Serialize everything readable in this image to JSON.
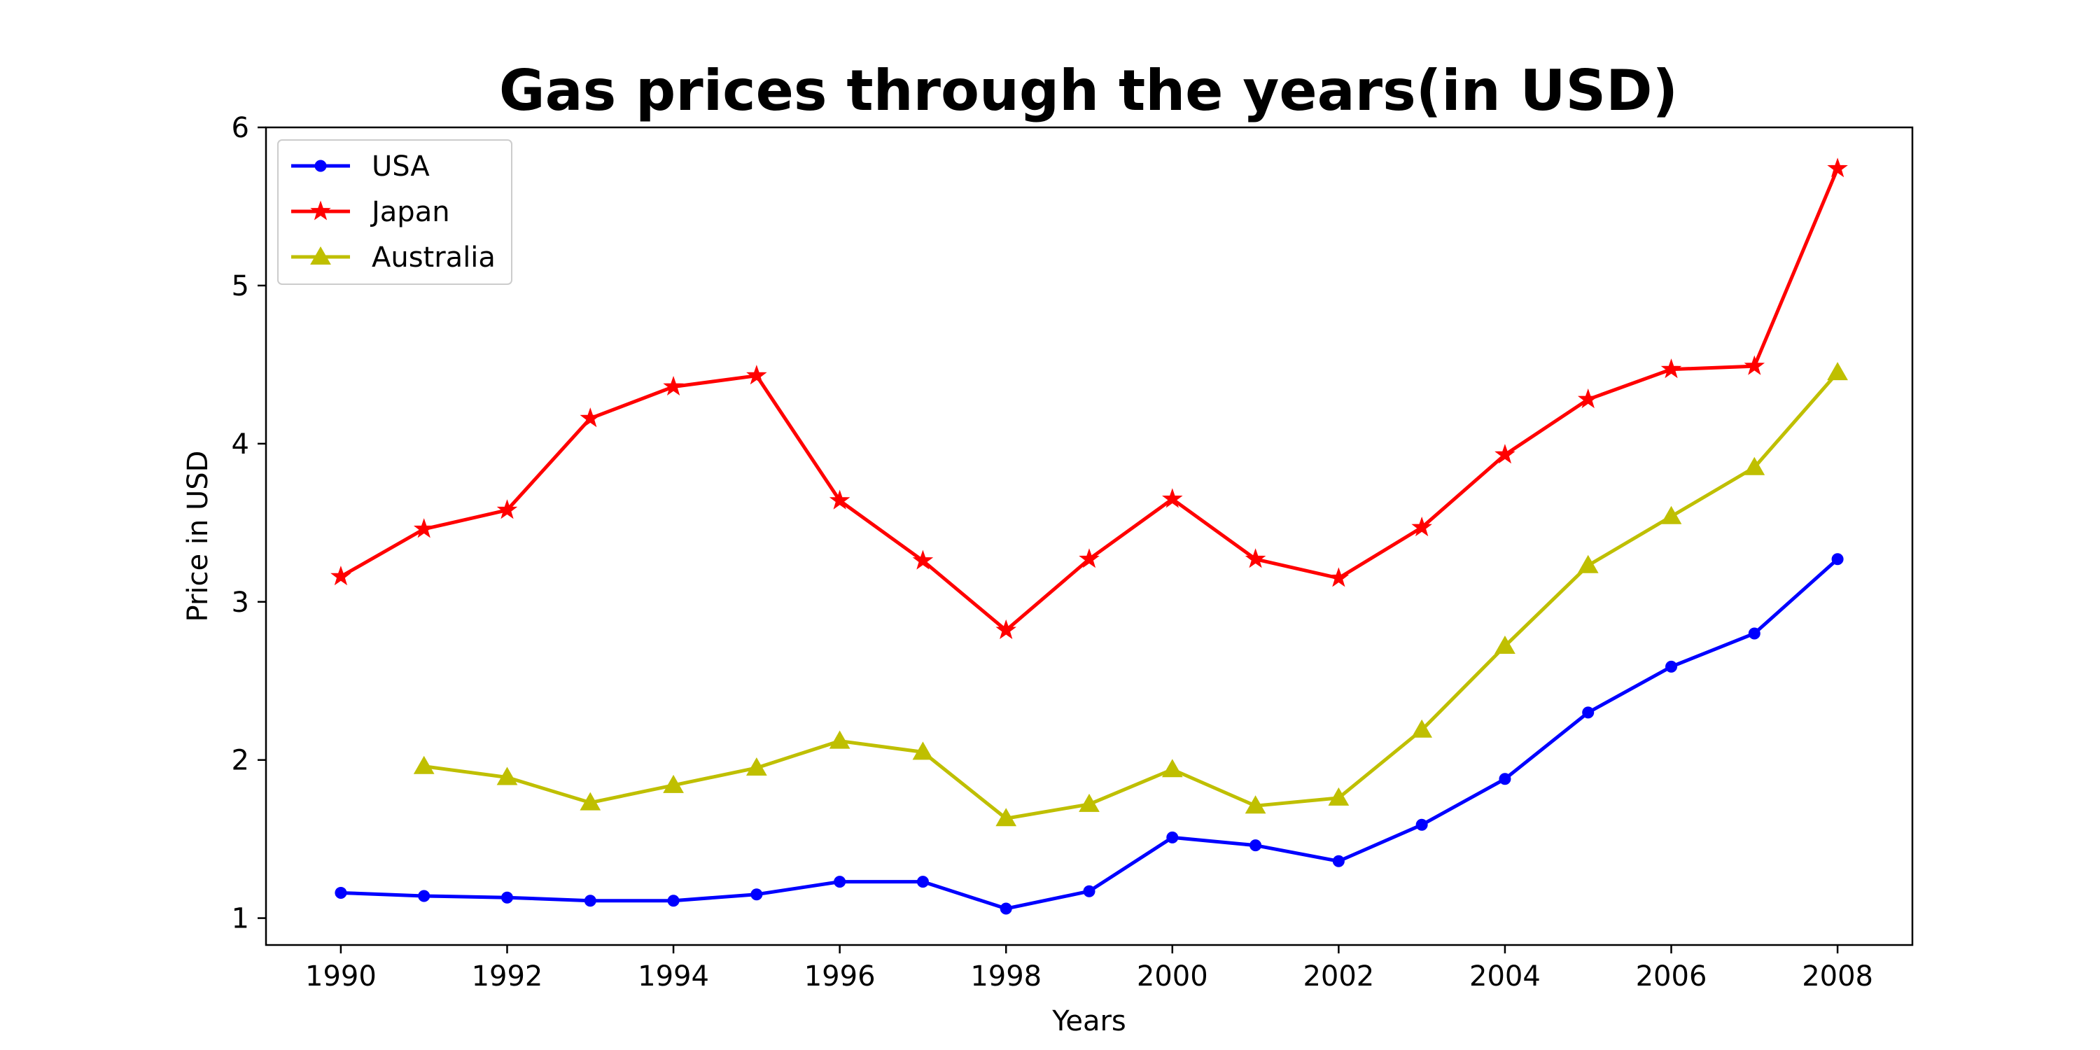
{
  "chart_data": {
    "type": "line",
    "title": "Gas prices through the years(in USD)",
    "xlabel": "Years",
    "ylabel": "Price in USD",
    "xlim": [
      1989.1,
      2008.9
    ],
    "ylim": [
      0.83,
      6.0
    ],
    "x_ticks": [
      1990,
      1992,
      1994,
      1996,
      1998,
      2000,
      2002,
      2004,
      2006,
      2008
    ],
    "y_ticks": [
      1,
      2,
      3,
      4,
      5,
      6
    ],
    "grid": false,
    "legend_position": "top-left",
    "series": [
      {
        "name": "USA",
        "color": "#0000ff",
        "marker": "circle",
        "x": [
          1990,
          1991,
          1992,
          1993,
          1994,
          1995,
          1996,
          1997,
          1998,
          1999,
          2000,
          2001,
          2002,
          2003,
          2004,
          2005,
          2006,
          2007,
          2008
        ],
        "values": [
          1.16,
          1.14,
          1.13,
          1.11,
          1.11,
          1.15,
          1.23,
          1.23,
          1.06,
          1.17,
          1.51,
          1.46,
          1.36,
          1.59,
          1.88,
          2.3,
          2.59,
          2.8,
          3.27
        ]
      },
      {
        "name": "Japan",
        "color": "#ff0000",
        "marker": "star",
        "x": [
          1990,
          1991,
          1992,
          1993,
          1994,
          1995,
          1996,
          1997,
          1998,
          1999,
          2000,
          2001,
          2002,
          2003,
          2004,
          2005,
          2006,
          2007,
          2008
        ],
        "values": [
          3.16,
          3.46,
          3.58,
          4.16,
          4.36,
          4.43,
          3.64,
          3.26,
          2.82,
          3.27,
          3.65,
          3.27,
          3.15,
          3.47,
          3.93,
          4.28,
          4.47,
          4.49,
          5.74
        ]
      },
      {
        "name": "Australia",
        "color": "#bfbf00",
        "marker": "triangle",
        "x": [
          1991,
          1992,
          1993,
          1994,
          1995,
          1996,
          1997,
          1998,
          1999,
          2000,
          2001,
          2002,
          2003,
          2004,
          2005,
          2006,
          2007,
          2008
        ],
        "values": [
          1.96,
          1.89,
          1.73,
          1.84,
          1.95,
          2.12,
          2.05,
          1.63,
          1.72,
          1.94,
          1.71,
          1.76,
          2.19,
          2.72,
          3.23,
          3.54,
          3.85,
          4.45
        ]
      }
    ]
  }
}
